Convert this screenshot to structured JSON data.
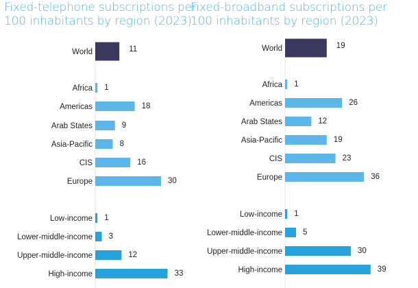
{
  "colors": {
    "title": "#55b4e2",
    "world": "#3a385f",
    "region": "#5cb7e8",
    "income": "#27a2db",
    "axis": "#e2e2e2"
  },
  "chart_data": [
    {
      "type": "bar",
      "orientation": "horizontal",
      "title_lines": [
        "Fixed-telephone subscriptions per",
        "100 inhabitants by region (2023)"
      ],
      "categories": [
        "World",
        "Africa",
        "Americas",
        "Arab States",
        "Asia-Pacific",
        "CIS",
        "Europe",
        "Low-income",
        "Lower-middle-income",
        "Upper-middle-income",
        "High-income"
      ],
      "groups": [
        "world",
        "region",
        "region",
        "region",
        "region",
        "region",
        "region",
        "income",
        "income",
        "income",
        "income"
      ],
      "values": [
        11,
        1,
        18,
        9,
        8,
        16,
        30,
        1,
        3,
        12,
        33
      ],
      "data_labels": true,
      "grid": false
    },
    {
      "type": "bar",
      "orientation": "horizontal",
      "title_lines": [
        "Fixed-broadband subscriptions per",
        "100 inhabitants by region (2023)"
      ],
      "categories": [
        "World",
        "Africa",
        "Americas",
        "Arab States",
        "Asia-Pacific",
        "CIS",
        "Europe",
        "Low-income",
        "Lower-middle-income",
        "Upper-middle-income",
        "High-income"
      ],
      "groups": [
        "world",
        "region",
        "region",
        "region",
        "region",
        "region",
        "region",
        "income",
        "income",
        "income",
        "income"
      ],
      "values": [
        19,
        1,
        26,
        12,
        19,
        23,
        36,
        1,
        5,
        30,
        39
      ],
      "data_labels": true,
      "grid": false
    }
  ]
}
